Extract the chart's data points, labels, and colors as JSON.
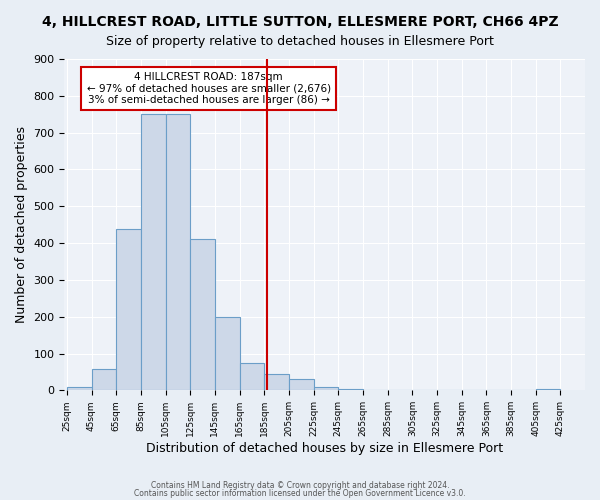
{
  "title": "4, HILLCREST ROAD, LITTLE SUTTON, ELLESMERE PORT, CH66 4PZ",
  "subtitle": "Size of property relative to detached houses in Ellesmere Port",
  "xlabel": "Distribution of detached houses by size in Ellesmere Port",
  "ylabel": "Number of detached properties",
  "bin_edges": [
    25,
    45,
    65,
    85,
    105,
    125,
    145,
    165,
    185,
    205,
    225,
    245,
    265,
    285,
    305,
    325,
    345,
    365,
    385,
    405,
    425
  ],
  "bin_counts": [
    10,
    57,
    437,
    750,
    750,
    410,
    200,
    75,
    45,
    30,
    10,
    5,
    0,
    0,
    0,
    0,
    0,
    0,
    0,
    5
  ],
  "bar_facecolor": "#cdd8e8",
  "bar_edgecolor": "#6b9ec8",
  "vline_x": 187,
  "vline_color": "#cc0000",
  "annotation_title": "4 HILLCREST ROAD: 187sqm",
  "annotation_line1": "← 97% of detached houses are smaller (2,676)",
  "annotation_line2": "3% of semi-detached houses are larger (86) →",
  "annotation_box_color": "#cc0000",
  "ylim": [
    0,
    900
  ],
  "yticks": [
    0,
    100,
    200,
    300,
    400,
    500,
    600,
    700,
    800,
    900
  ],
  "xtick_labels": [
    "25sqm",
    "45sqm",
    "65sqm",
    "85sqm",
    "105sqm",
    "125sqm",
    "145sqm",
    "165sqm",
    "185sqm",
    "205sqm",
    "225sqm",
    "245sqm",
    "265sqm",
    "285sqm",
    "305sqm",
    "325sqm",
    "345sqm",
    "365sqm",
    "385sqm",
    "405sqm",
    "425sqm"
  ],
  "footnote1": "Contains HM Land Registry data © Crown copyright and database right 2024.",
  "footnote2": "Contains public sector information licensed under the Open Government Licence v3.0.",
  "bg_color": "#e8eef5",
  "plot_bg_color": "#eef2f8",
  "grid_color": "#ffffff",
  "title_fontsize": 10,
  "subtitle_fontsize": 9,
  "xlabel_fontsize": 9,
  "ylabel_fontsize": 9
}
